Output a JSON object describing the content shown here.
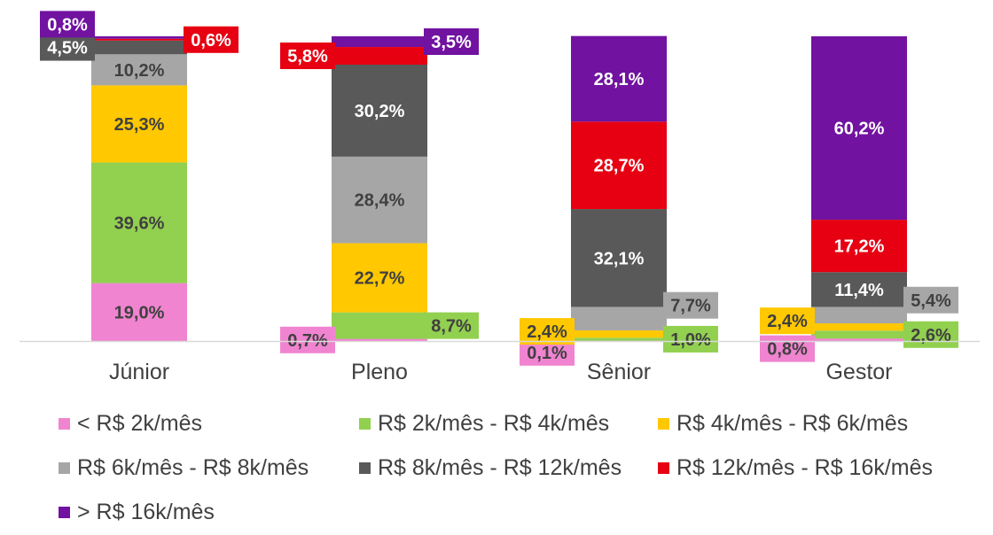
{
  "chart_data": {
    "type": "bar",
    "stacked": true,
    "percent": true,
    "categories": [
      "Júnior",
      "Pleno",
      "Sênior",
      "Gestor"
    ],
    "series": [
      {
        "name": "< R$ 2k/mês",
        "color": "#F084D0",
        "values": [
          19.0,
          0.7,
          0.1,
          0.8
        ],
        "labels": [
          "19,0%",
          "0,7%",
          "0,1%",
          "0,8%"
        ]
      },
      {
        "name": "R$ 2k/mês - R$ 4k/mês",
        "color": "#92D050",
        "values": [
          39.6,
          8.7,
          1.0,
          2.6
        ],
        "labels": [
          "39,6%",
          "8,7%",
          "1,0%",
          "2,6%"
        ]
      },
      {
        "name": "R$ 4k/mês - R$ 6k/mês",
        "color": "#FFC800",
        "values": [
          25.3,
          22.7,
          2.4,
          2.4
        ],
        "labels": [
          "25,3%",
          "22,7%",
          "2,4%",
          "2,4%"
        ]
      },
      {
        "name": "R$ 6k/mês - R$ 8k/mês",
        "color": "#A6A6A6",
        "values": [
          10.2,
          28.4,
          7.7,
          5.4
        ],
        "labels": [
          "10,2%",
          "28,4%",
          "7,7%",
          "5,4%"
        ]
      },
      {
        "name": "R$ 8k/mês - R$ 12k/mês",
        "color": "#595959",
        "values": [
          4.5,
          30.2,
          32.1,
          11.4
        ],
        "labels": [
          "4,5%",
          "30,2%",
          "32,1%",
          "11,4%"
        ]
      },
      {
        "name": "R$ 12k/mês - R$ 16k/mês",
        "color": "#E60012",
        "values": [
          0.6,
          5.8,
          28.7,
          17.2
        ],
        "labels": [
          "0,6%",
          "5,8%",
          "28,7%",
          "17,2%"
        ]
      },
      {
        "name": "> R$ 16k/mês",
        "color": "#7112A0",
        "values": [
          0.8,
          3.5,
          28.1,
          60.2
        ],
        "labels": [
          "0,8%",
          "3,5%",
          "28,1%",
          "60,2%"
        ]
      }
    ],
    "ylim": [
      0,
      100
    ],
    "grid": false,
    "legend_position": "bottom"
  }
}
